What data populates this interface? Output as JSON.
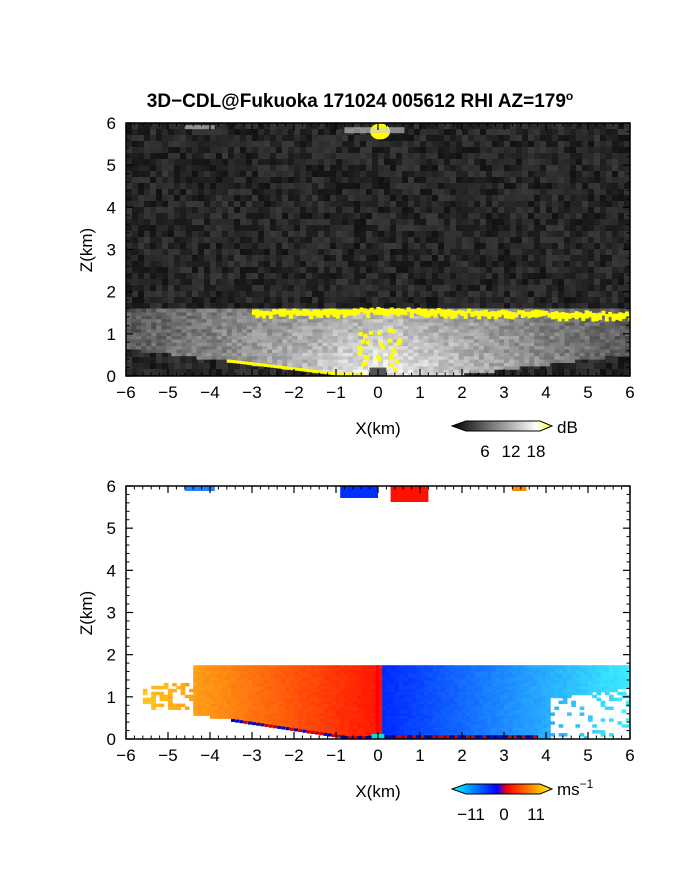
{
  "figure": {
    "title_parts": {
      "main": "3D−CDL@Fukuoka 171024 005612 RHI AZ=179",
      "sup": "o"
    }
  },
  "chart_data": [
    {
      "type": "heatmap",
      "quantity": "reflectivity",
      "xlabel": "X(km)",
      "ylabel": "Z(km)",
      "xlim": [
        -6,
        6
      ],
      "ylim": [
        0,
        6
      ],
      "xticks": [
        "−6",
        "−5",
        "−4",
        "−3",
        "−2",
        "−1",
        "0",
        "1",
        "2",
        "3",
        "4",
        "5",
        "6"
      ],
      "yticks": [
        "0",
        "1",
        "2",
        "3",
        "4",
        "5",
        "6"
      ],
      "layer_top_km": 1.6,
      "colorbar": {
        "unit": "dB",
        "ticks": [
          "6",
          "12",
          "18"
        ],
        "range": [
          0,
          20
        ],
        "colors": [
          "#000000",
          "#ffffff",
          "#ffff00"
        ]
      }
    },
    {
      "type": "heatmap",
      "quantity": "doppler velocity",
      "xlabel": "X(km)",
      "ylabel": "Z(km)",
      "xlim": [
        -6,
        6
      ],
      "ylim": [
        0,
        6
      ],
      "xticks": [
        "−6",
        "−5",
        "−4",
        "−3",
        "−2",
        "−1",
        "0",
        "1",
        "2",
        "3",
        "4",
        "5",
        "6"
      ],
      "yticks": [
        "0",
        "1",
        "2",
        "3",
        "4",
        "5",
        "6"
      ],
      "layer_top_km": 1.75,
      "colorbar": {
        "unit": "ms",
        "unit_sup": "−1",
        "ticks": [
          "−11",
          "0",
          "11"
        ],
        "range": [
          -15,
          15
        ],
        "colors": [
          "#00ffff",
          "#0000ff",
          "#ff0000",
          "#ffff00"
        ]
      }
    }
  ]
}
